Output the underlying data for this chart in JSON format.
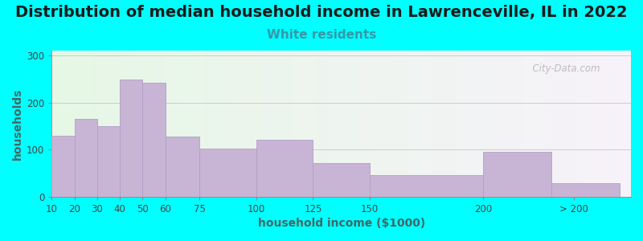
{
  "title": "Distribution of median household income in Lawrenceville, IL in 2022",
  "subtitle": "White residents",
  "xlabel": "household income ($1000)",
  "ylabel": "households",
  "background_outer": "#00FFFF",
  "bar_color": "#c8b4d4",
  "bar_edgecolor": "#b0a0c8",
  "bin_edges": [
    10,
    20,
    30,
    40,
    50,
    60,
    75,
    100,
    125,
    150,
    200,
    230,
    260
  ],
  "values": [
    130,
    165,
    150,
    248,
    242,
    128,
    102,
    120,
    72,
    46,
    95,
    28
  ],
  "xtick_positions": [
    10,
    20,
    30,
    40,
    50,
    60,
    75,
    100,
    125,
    150,
    200,
    240
  ],
  "xtick_labels": [
    "10",
    "20",
    "30",
    "40",
    "50",
    "60",
    "75",
    "100",
    "125",
    "150",
    "200",
    "> 200"
  ],
  "ylim": [
    0,
    310
  ],
  "xlim": [
    10,
    265
  ],
  "yticks": [
    0,
    100,
    200,
    300
  ],
  "title_fontsize": 14,
  "subtitle_fontsize": 11,
  "subtitle_color": "#3399AA",
  "axis_label_fontsize": 10,
  "tick_fontsize": 8.5,
  "watermark": "  City-Data.com"
}
